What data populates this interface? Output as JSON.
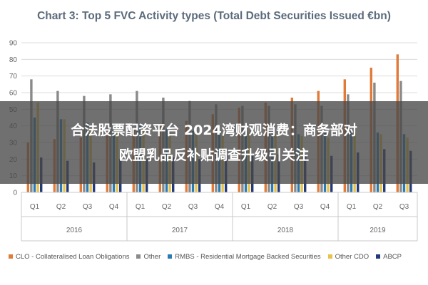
{
  "chart_data": {
    "type": "bar",
    "title": "Chart 3: Top 5 FVC Activity types (Total Debt Securities Issued €bn)",
    "ylim": [
      0,
      90
    ],
    "yticks": [
      0,
      10,
      20,
      30,
      40,
      50,
      60,
      70,
      80,
      90
    ],
    "grid": true,
    "legend_position": "bottom",
    "categories": [
      "Q1",
      "Q2",
      "Q3",
      "Q4",
      "Q1",
      "Q2",
      "Q3",
      "Q4",
      "Q1",
      "Q2",
      "Q3",
      "Q4",
      "Q1",
      "Q2",
      "Q3"
    ],
    "groups": [
      {
        "label": "2016",
        "count": 4
      },
      {
        "label": "2017",
        "count": 4
      },
      {
        "label": "2018",
        "count": 4
      },
      {
        "label": "2019",
        "count": 3
      }
    ],
    "series": [
      {
        "name": "CLO - Collateralised Loan Obligations",
        "color": "#e07b39",
        "values": [
          30,
          32,
          33,
          35,
          38,
          40,
          43,
          47,
          51,
          54,
          57,
          61,
          68,
          75,
          83
        ]
      },
      {
        "name": "Other",
        "color": "#8a8a8a",
        "values": [
          68,
          61,
          58,
          59,
          61,
          57,
          55,
          53,
          52,
          52,
          53,
          52,
          59,
          66,
          67
        ]
      },
      {
        "name": "RMBS - Residential Mortgage Backed Securities",
        "color": "#2b7bb3",
        "values": [
          45,
          44,
          42,
          41,
          40,
          38,
          37,
          36,
          37,
          36,
          35,
          36,
          37,
          36,
          35
        ]
      },
      {
        "name": "Other CDO",
        "color": "#e8c24a",
        "values": [
          54,
          44,
          40,
          39,
          38,
          36,
          35,
          34,
          36,
          35,
          34,
          33,
          36,
          35,
          33
        ]
      },
      {
        "name": "ABCP",
        "color": "#233a7a",
        "values": [
          21,
          19,
          18,
          20,
          20,
          21,
          20,
          22,
          22,
          23,
          23,
          22,
          24,
          26,
          25
        ]
      }
    ]
  },
  "overlay": {
    "line1": "合法股票配资平台 2024湾财观消费：商务部对",
    "line2": "欧盟乳品反补贴调查升级引关注"
  }
}
